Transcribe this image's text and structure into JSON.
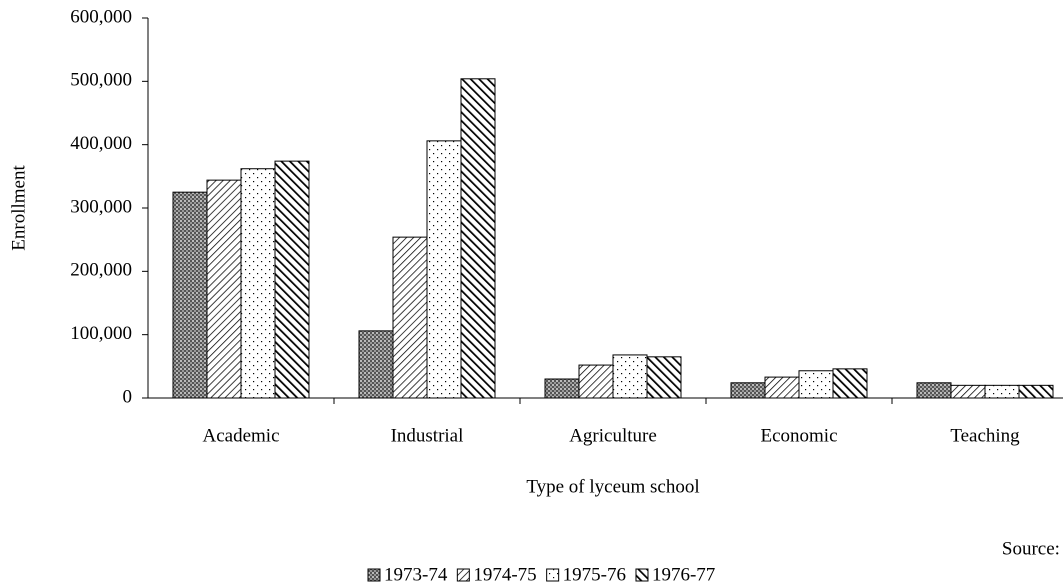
{
  "chart_data": {
    "type": "bar",
    "x_label": "Type of lyceum school",
    "y_label": "Enrollment",
    "source": "Source: I",
    "categories": [
      "Academic",
      "Industrial",
      "Agriculture",
      "Economic",
      "Teaching"
    ],
    "series": [
      {
        "name": "1973-74",
        "color": "#000000",
        "values": [
          325000,
          106000,
          30000,
          24000,
          24000
        ]
      },
      {
        "name": "1974-75",
        "color": "#000000",
        "values": [
          344000,
          254000,
          52000,
          33000,
          20000
        ]
      },
      {
        "name": "1975-76",
        "color": "#000000",
        "values": [
          362000,
          406000,
          68000,
          43000,
          20000
        ]
      },
      {
        "name": "1976-77",
        "color": "#000000",
        "values": [
          374000,
          504000,
          65000,
          46000,
          20000
        ]
      }
    ],
    "ylim": [
      0,
      600000
    ],
    "yticks": [
      0,
      {
        "value": 100000,
        "label": "100,000"
      },
      {
        "value": 200000,
        "label": "200,000"
      },
      {
        "value": 300000,
        "label": "300,000"
      },
      {
        "value": 400000,
        "label": "400,000"
      },
      {
        "value": 500000,
        "label": "500,000"
      },
      {
        "value": 600000,
        "label": "600,000"
      }
    ],
    "grid": false
  }
}
